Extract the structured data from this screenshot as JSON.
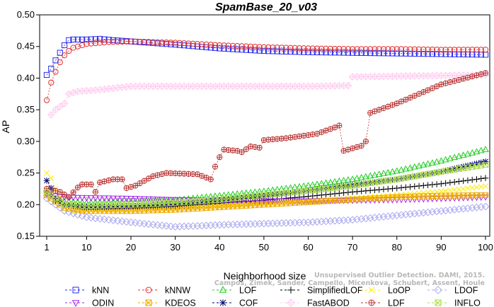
{
  "chart_data": {
    "type": "line",
    "title": "SpamBase_20_v03",
    "xlabel": "Neighborhood size",
    "ylabel": "AP",
    "xlim": [
      0,
      100
    ],
    "ylim": [
      0.15,
      0.5
    ],
    "x_ticks": [
      1,
      10,
      20,
      30,
      40,
      50,
      60,
      70,
      80,
      90,
      100
    ],
    "y_ticks": [
      "0.15",
      "0.20",
      "0.25",
      "0.30",
      "0.35",
      "0.40",
      "0.45",
      "0.50"
    ],
    "grid": false,
    "legend_position": "bottom",
    "credit": "Campos, Zimek, Sander, Campello, Micenkova, Schubert, Assent, Houle",
    "credit_line1": "Unsupervised Outlier Detection. DAMI, 2015.",
    "series": [
      {
        "name": "kNN",
        "color": "#2a2aee",
        "marker": "square",
        "points": [
          [
            1,
            0.405
          ],
          [
            2,
            0.415
          ],
          [
            3,
            0.428
          ],
          [
            4,
            0.44
          ],
          [
            5,
            0.452
          ],
          [
            6,
            0.46
          ],
          [
            7,
            0.461
          ],
          [
            10,
            0.461
          ],
          [
            13,
            0.462
          ],
          [
            16,
            0.46
          ],
          [
            20,
            0.458
          ],
          [
            30,
            0.453
          ],
          [
            40,
            0.447
          ],
          [
            50,
            0.443
          ],
          [
            60,
            0.441
          ],
          [
            70,
            0.44
          ],
          [
            80,
            0.439
          ],
          [
            90,
            0.438
          ],
          [
            100,
            0.437
          ]
        ]
      },
      {
        "name": "kNNW",
        "color": "#e03030",
        "marker": "circle",
        "points": [
          [
            1,
            0.365
          ],
          [
            2,
            0.393
          ],
          [
            3,
            0.41
          ],
          [
            4,
            0.425
          ],
          [
            5,
            0.436
          ],
          [
            6,
            0.443
          ],
          [
            7,
            0.448
          ],
          [
            10,
            0.454
          ],
          [
            15,
            0.457
          ],
          [
            20,
            0.458
          ],
          [
            30,
            0.456
          ],
          [
            40,
            0.452
          ],
          [
            50,
            0.449
          ],
          [
            60,
            0.447
          ],
          [
            70,
            0.446
          ],
          [
            80,
            0.446
          ],
          [
            90,
            0.445
          ],
          [
            100,
            0.445
          ]
        ]
      },
      {
        "name": "LOF",
        "color": "#22cc22",
        "marker": "triangle-up",
        "points": [
          [
            1,
            0.218
          ],
          [
            2,
            0.212
          ],
          [
            3,
            0.207
          ],
          [
            5,
            0.205
          ],
          [
            10,
            0.203
          ],
          [
            20,
            0.205
          ],
          [
            30,
            0.207
          ],
          [
            40,
            0.214
          ],
          [
            50,
            0.221
          ],
          [
            60,
            0.23
          ],
          [
            70,
            0.24
          ],
          [
            80,
            0.253
          ],
          [
            90,
            0.269
          ],
          [
            100,
            0.287
          ]
        ]
      },
      {
        "name": "SimplifiedLOF",
        "color": "#000000",
        "marker": "plus",
        "points": [
          [
            1,
            0.222
          ],
          [
            2,
            0.215
          ],
          [
            3,
            0.205
          ],
          [
            5,
            0.2
          ],
          [
            10,
            0.197
          ],
          [
            20,
            0.197
          ],
          [
            30,
            0.198
          ],
          [
            40,
            0.202
          ],
          [
            50,
            0.207
          ],
          [
            60,
            0.213
          ],
          [
            70,
            0.22
          ],
          [
            80,
            0.226
          ],
          [
            90,
            0.233
          ],
          [
            100,
            0.242
          ]
        ]
      },
      {
        "name": "LoOP",
        "color": "#ffee00",
        "marker": "cross",
        "points": [
          [
            1,
            0.25
          ],
          [
            2,
            0.242
          ],
          [
            3,
            0.225
          ],
          [
            5,
            0.2
          ],
          [
            7,
            0.188
          ],
          [
            10,
            0.19
          ],
          [
            20,
            0.193
          ],
          [
            30,
            0.196
          ],
          [
            40,
            0.198
          ],
          [
            50,
            0.202
          ],
          [
            60,
            0.206
          ],
          [
            70,
            0.21
          ],
          [
            80,
            0.215
          ],
          [
            90,
            0.221
          ],
          [
            100,
            0.229
          ]
        ]
      },
      {
        "name": "LDOF",
        "color": "#aaaaee",
        "marker": "diamond",
        "points": [
          [
            1,
            0.21
          ],
          [
            5,
            0.19
          ],
          [
            10,
            0.18
          ],
          [
            20,
            0.172
          ],
          [
            30,
            0.165
          ],
          [
            40,
            0.168
          ],
          [
            50,
            0.17
          ],
          [
            60,
            0.172
          ],
          [
            70,
            0.176
          ],
          [
            80,
            0.183
          ],
          [
            90,
            0.19
          ],
          [
            100,
            0.197
          ]
        ]
      },
      {
        "name": "ODIN",
        "color": "#aa22ee",
        "marker": "triangle-down",
        "points": [
          [
            1,
            0.217
          ],
          [
            3,
            0.214
          ],
          [
            5,
            0.212
          ],
          [
            10,
            0.211
          ],
          [
            20,
            0.21
          ],
          [
            30,
            0.208
          ],
          [
            40,
            0.207
          ],
          [
            50,
            0.206
          ],
          [
            60,
            0.206
          ],
          [
            70,
            0.207
          ],
          [
            80,
            0.208
          ],
          [
            90,
            0.21
          ],
          [
            100,
            0.212
          ]
        ]
      },
      {
        "name": "KDEOS",
        "color": "#eeaa00",
        "marker": "square-x",
        "points": [
          [
            1,
            0.215
          ],
          [
            3,
            0.205
          ],
          [
            5,
            0.195
          ],
          [
            10,
            0.19
          ],
          [
            20,
            0.19
          ],
          [
            30,
            0.192
          ],
          [
            40,
            0.196
          ],
          [
            50,
            0.2
          ],
          [
            60,
            0.204
          ],
          [
            70,
            0.208
          ],
          [
            80,
            0.212
          ],
          [
            90,
            0.214
          ],
          [
            100,
            0.215
          ]
        ]
      },
      {
        "name": "COF",
        "color": "#000077",
        "marker": "asterisk",
        "points": [
          [
            1,
            0.238
          ],
          [
            2,
            0.226
          ],
          [
            3,
            0.21
          ],
          [
            5,
            0.2
          ],
          [
            10,
            0.196
          ],
          [
            20,
            0.197
          ],
          [
            30,
            0.2
          ],
          [
            40,
            0.207
          ],
          [
            50,
            0.214
          ],
          [
            60,
            0.222
          ],
          [
            70,
            0.231
          ],
          [
            80,
            0.24
          ],
          [
            90,
            0.252
          ],
          [
            100,
            0.268
          ]
        ]
      },
      {
        "name": "FastABOD",
        "color": "#ffccf0",
        "marker": "diamond-plus",
        "points": [
          [
            2,
            0.342
          ],
          [
            3,
            0.35
          ],
          [
            5,
            0.36
          ],
          [
            6,
            0.375
          ],
          [
            8,
            0.379
          ],
          [
            12,
            0.381
          ],
          [
            16,
            0.384
          ],
          [
            20,
            0.387
          ],
          [
            30,
            0.387
          ],
          [
            40,
            0.387
          ],
          [
            50,
            0.387
          ],
          [
            60,
            0.387
          ],
          [
            68,
            0.388
          ],
          [
            69,
            0.388
          ],
          [
            70,
            0.402
          ],
          [
            80,
            0.403
          ],
          [
            90,
            0.404
          ],
          [
            100,
            0.405
          ]
        ]
      },
      {
        "name": "LDF",
        "color": "#bb3333",
        "marker": "circle-plus",
        "points": [
          [
            1,
            0.225
          ],
          [
            4,
            0.22
          ],
          [
            6,
            0.212
          ],
          [
            8,
            0.227
          ],
          [
            9,
            0.232
          ],
          [
            11,
            0.232
          ],
          [
            12,
            0.22
          ],
          [
            13,
            0.235
          ],
          [
            16,
            0.24
          ],
          [
            18,
            0.24
          ],
          [
            19,
            0.226
          ],
          [
            21,
            0.23
          ],
          [
            25,
            0.245
          ],
          [
            28,
            0.25
          ],
          [
            35,
            0.248
          ],
          [
            38,
            0.24
          ],
          [
            39,
            0.26
          ],
          [
            40,
            0.275
          ],
          [
            41,
            0.287
          ],
          [
            44,
            0.285
          ],
          [
            45,
            0.283
          ],
          [
            47,
            0.292
          ],
          [
            49,
            0.29
          ],
          [
            50,
            0.302
          ],
          [
            55,
            0.305
          ],
          [
            62,
            0.312
          ],
          [
            66,
            0.322
          ],
          [
            67,
            0.325
          ],
          [
            68,
            0.285
          ],
          [
            72,
            0.293
          ],
          [
            73,
            0.3
          ],
          [
            74,
            0.345
          ],
          [
            80,
            0.36
          ],
          [
            90,
            0.39
          ],
          [
            100,
            0.408
          ]
        ]
      },
      {
        "name": "INFLO",
        "color": "#aadd44",
        "marker": "square-x",
        "points": [
          [
            1,
            0.22
          ],
          [
            3,
            0.21
          ],
          [
            5,
            0.2
          ],
          [
            10,
            0.198
          ],
          [
            20,
            0.2
          ],
          [
            30,
            0.203
          ],
          [
            40,
            0.208
          ],
          [
            50,
            0.215
          ],
          [
            60,
            0.222
          ],
          [
            70,
            0.23
          ],
          [
            80,
            0.24
          ],
          [
            90,
            0.252
          ],
          [
            100,
            0.263
          ]
        ]
      }
    ]
  }
}
